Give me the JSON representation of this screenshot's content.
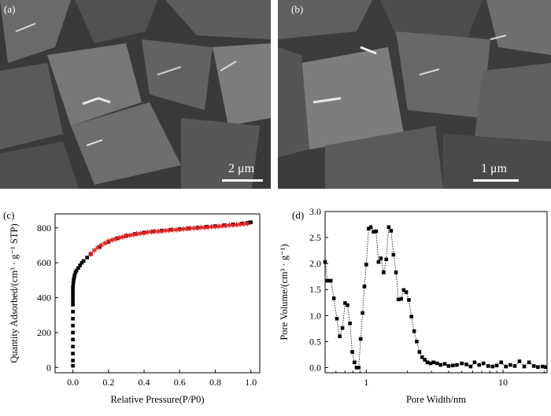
{
  "panels": {
    "a": {
      "label": "(a)",
      "scale": "2 μm"
    },
    "b": {
      "label": "(b)",
      "scale": "1 μm"
    },
    "c": {
      "label": "(c)"
    },
    "d": {
      "label": "(d)"
    }
  },
  "colors": {
    "black_series": "#000000",
    "red_series": "#e02020",
    "sem_bg": "#3b3b3b"
  },
  "chart_data": [
    {
      "type": "scatter",
      "xlabel": "Relative Pressure(P/P0)",
      "ylabel": "Quantity Adsorbed/(cm³ · g⁻¹ STP)",
      "xlim": [
        -0.1,
        1.05
      ],
      "ylim": [
        -30,
        880
      ],
      "xticks": [
        "0.0",
        "0.2",
        "0.4",
        "0.6",
        "0.8",
        "1.0"
      ],
      "yticks": [
        "0",
        "200",
        "400",
        "600",
        "800"
      ],
      "series": [
        {
          "color": "#000000",
          "marker": "square",
          "x": [
            0.0,
            0.0,
            0.0,
            0.0,
            0.0,
            0.0,
            0.0,
            0.0,
            0.0,
            0.0,
            0.0,
            0.0,
            0.0,
            0.0,
            0.0,
            0.002,
            0.004,
            0.006,
            0.008,
            0.01,
            0.015,
            0.02,
            0.03,
            0.04,
            0.05,
            0.06,
            0.08,
            0.1,
            0.15,
            0.2,
            0.25,
            0.3,
            0.35,
            0.4,
            0.45,
            0.5,
            0.55,
            0.6,
            0.65,
            0.7,
            0.75,
            0.8,
            0.85,
            0.9,
            0.95,
            0.98,
            0.99,
            1.0
          ],
          "y": [
            10,
            40,
            80,
            120,
            160,
            200,
            240,
            280,
            320,
            360,
            380,
            400,
            420,
            440,
            460,
            480,
            500,
            510,
            520,
            530,
            545,
            555,
            570,
            585,
            600,
            610,
            630,
            650,
            690,
            720,
            740,
            755,
            765,
            773,
            779,
            784,
            789,
            793,
            797,
            801,
            806,
            810,
            815,
            820,
            825,
            828,
            830,
            832
          ]
        },
        {
          "color": "#e02020",
          "marker": "star",
          "x": [
            0.1,
            0.12,
            0.14,
            0.16,
            0.18,
            0.2,
            0.22,
            0.24,
            0.26,
            0.28,
            0.3,
            0.32,
            0.34,
            0.36,
            0.38,
            0.4,
            0.42,
            0.44,
            0.46,
            0.48,
            0.5,
            0.52,
            0.54,
            0.56,
            0.58,
            0.6,
            0.62,
            0.64,
            0.66,
            0.68,
            0.7,
            0.72,
            0.74,
            0.76,
            0.78,
            0.8,
            0.82,
            0.84,
            0.86,
            0.88,
            0.9,
            0.92,
            0.94,
            0.96,
            0.98
          ],
          "y": [
            650,
            672,
            688,
            702,
            714,
            724,
            732,
            739,
            745,
            750,
            755,
            759,
            763,
            767,
            770,
            773,
            776,
            778,
            780,
            782,
            784,
            786,
            788,
            790,
            791,
            793,
            795,
            796,
            798,
            799,
            801,
            803,
            804,
            806,
            807,
            809,
            811,
            813,
            814,
            816,
            818,
            820,
            821,
            823,
            825
          ]
        }
      ]
    },
    {
      "type": "line",
      "xlabel": "Pore Width/nm",
      "ylabel": "Pore Volume/(cm³ · g⁻¹)",
      "xscale": "log",
      "xlim": [
        0.5,
        21
      ],
      "ylim": [
        -0.1,
        3.0
      ],
      "xticks": [
        "1",
        "10"
      ],
      "yticks": [
        "0.0",
        "0.5",
        "1.0",
        "1.5",
        "2.0",
        "2.5",
        "3.0"
      ],
      "series": [
        {
          "color": "#000000",
          "marker": "square",
          "style": "dotted",
          "x": [
            0.5,
            0.52,
            0.55,
            0.58,
            0.61,
            0.64,
            0.67,
            0.7,
            0.73,
            0.76,
            0.79,
            0.82,
            0.85,
            0.88,
            0.91,
            0.94,
            0.97,
            1.0,
            1.04,
            1.08,
            1.13,
            1.18,
            1.23,
            1.28,
            1.34,
            1.4,
            1.46,
            1.52,
            1.58,
            1.65,
            1.72,
            1.8,
            1.88,
            1.96,
            2.05,
            2.14,
            2.24,
            2.34,
            2.45,
            2.56,
            2.68,
            2.8,
            2.95,
            3.1,
            3.3,
            3.5,
            3.75,
            4.0,
            4.3,
            4.6,
            5.0,
            5.4,
            5.8,
            6.2,
            6.7,
            7.2,
            7.8,
            8.4,
            9.0,
            9.7,
            10.5,
            11.3,
            12.2,
            13.2,
            14.3,
            15.5,
            16.8,
            18.0,
            19.5,
            20.5
          ],
          "y": [
            2.03,
            1.67,
            1.67,
            1.33,
            0.94,
            0.6,
            0.76,
            1.24,
            1.2,
            0.85,
            0.3,
            0.1,
            0.0,
            0.0,
            0.55,
            1.05,
            1.56,
            1.98,
            2.67,
            2.7,
            2.61,
            2.62,
            2.03,
            2.1,
            1.83,
            2.08,
            2.7,
            2.63,
            2.17,
            1.83,
            1.31,
            1.32,
            1.49,
            1.45,
            1.3,
            0.98,
            0.7,
            0.5,
            0.3,
            0.2,
            0.15,
            0.1,
            0.08,
            0.1,
            0.08,
            0.05,
            0.07,
            0.03,
            0.04,
            0.05,
            0.08,
            0.06,
            0.02,
            0.1,
            0.05,
            0.08,
            0.03,
            0.02,
            0.04,
            0.1,
            0.02,
            0.05,
            0.03,
            0.12,
            0.02,
            0.1,
            0.03,
            0.01,
            0.02,
            0.01
          ]
        }
      ]
    }
  ]
}
